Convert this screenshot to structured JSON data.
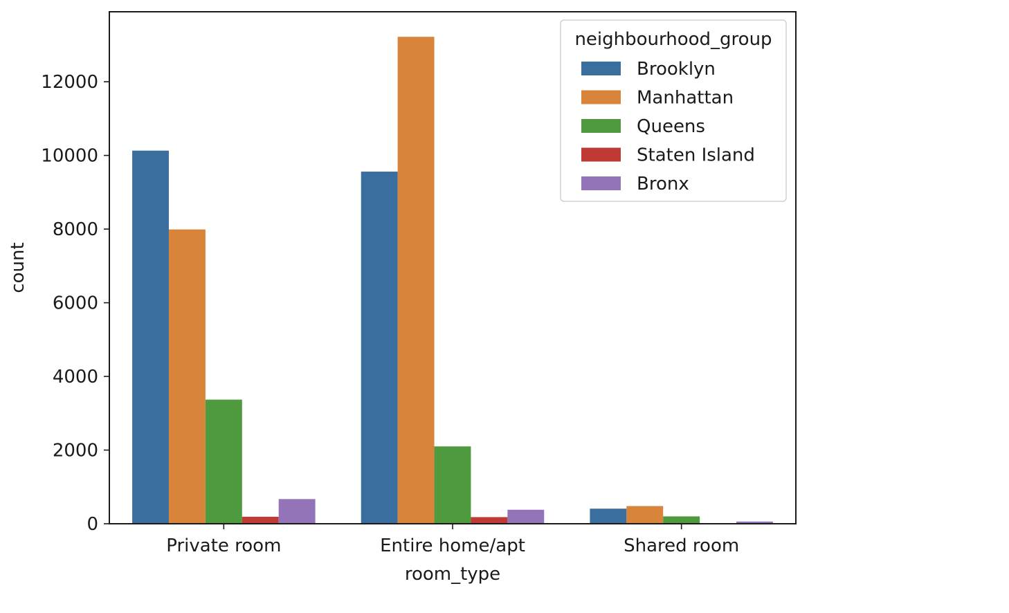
{
  "chart_data": {
    "type": "bar",
    "title": "",
    "xlabel": "room_type",
    "ylabel": "count",
    "categories": [
      "Private room",
      "Entire home/apt",
      "Shared room"
    ],
    "series": [
      {
        "name": "Brooklyn",
        "color": "#3a6e9e",
        "values": [
          10130,
          9560,
          410
        ]
      },
      {
        "name": "Manhattan",
        "color": "#d8843a",
        "values": [
          7990,
          13220,
          480
        ]
      },
      {
        "name": "Queens",
        "color": "#4f9a3e",
        "values": [
          3370,
          2100,
          200
        ]
      },
      {
        "name": "Staten Island",
        "color": "#c03a35",
        "values": [
          190,
          180,
          10
        ]
      },
      {
        "name": "Bronx",
        "color": "#9374b8",
        "values": [
          670,
          380,
          60
        ]
      }
    ],
    "ylim": [
      0,
      13900
    ],
    "yticks": [
      0,
      2000,
      4000,
      6000,
      8000,
      10000,
      12000
    ],
    "grid": false,
    "legend": {
      "title": "neighbourhood_group",
      "placement": "top-right"
    }
  }
}
